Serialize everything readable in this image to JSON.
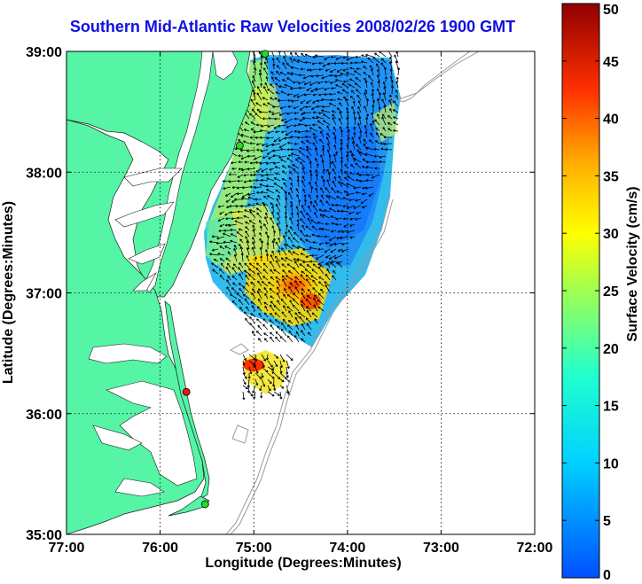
{
  "title": "Southern Mid-Atlantic Raw Velocities 2008/02/26 1900 GMT",
  "x_axis": {
    "label": "Longitude (Degrees:Minutes)",
    "ticks": [
      "77:00",
      "76:00",
      "75:00",
      "74:00",
      "73:00",
      "72:00"
    ],
    "range": [
      -77,
      -72
    ]
  },
  "y_axis": {
    "label": "Latitude (Degrees:Minutes)",
    "ticks": [
      "39:00",
      "38:00",
      "37:00",
      "36:00",
      "35:00"
    ],
    "range": [
      35,
      39
    ]
  },
  "colorbar": {
    "label": "Surface Velocity (cm/s)",
    "ticks": [
      "50",
      "45",
      "40",
      "35",
      "30",
      "25",
      "20",
      "15",
      "10",
      "5",
      "0"
    ],
    "range": [
      0,
      50
    ]
  },
  "colors": {
    "title": "#1010e0",
    "land": "#55f5a5",
    "stations": "#22dd22",
    "station_active": "#ee1111",
    "bathymetry": "#9a9a9a",
    "vectors": "#000000"
  },
  "stations": [
    {
      "name": "station-north",
      "lon": -74.88,
      "lat": 38.98,
      "active": false
    },
    {
      "name": "station-mid",
      "lon": -75.15,
      "lat": 38.22,
      "active": false
    },
    {
      "name": "station-south-active",
      "lon": -75.72,
      "lat": 36.18,
      "active": true
    },
    {
      "name": "station-hatteras",
      "lon": -75.52,
      "lat": 35.25,
      "active": false
    }
  ]
}
